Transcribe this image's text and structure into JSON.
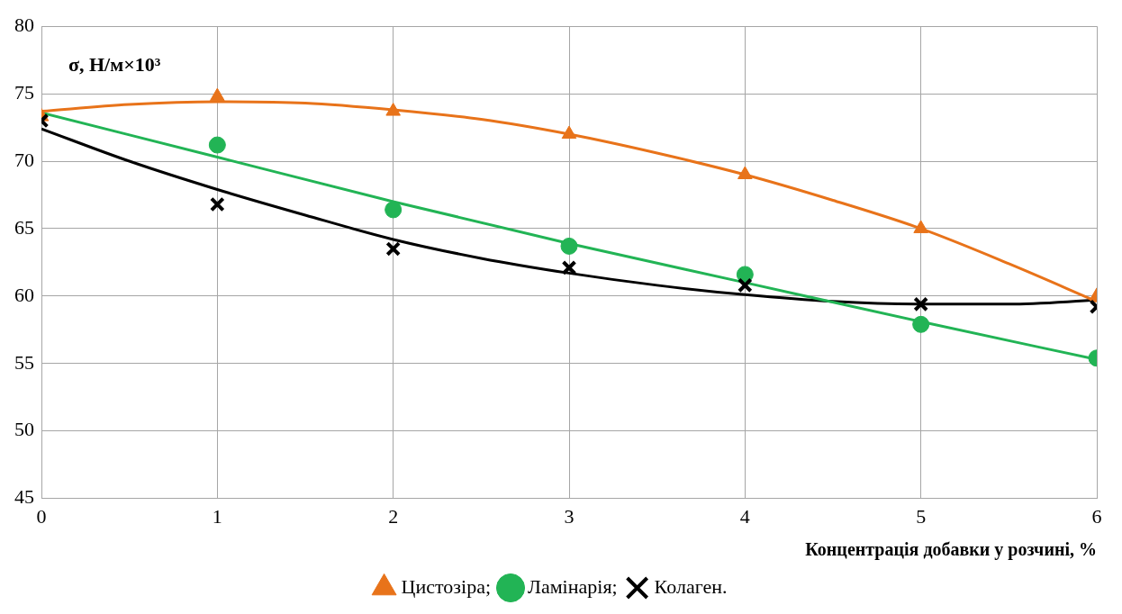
{
  "chart_data": {
    "type": "scatter",
    "xlabel": "Концентрація добавки у розчині, %",
    "ylabel": "σ, Н/м×10³",
    "x": [
      0,
      1,
      2,
      3,
      4,
      5,
      6
    ],
    "xlim": [
      0,
      6
    ],
    "xticks": [
      0,
      1,
      2,
      3,
      4,
      5,
      6
    ],
    "ylim": [
      45,
      80
    ],
    "yticks": [
      45,
      50,
      55,
      60,
      65,
      70,
      75,
      80
    ],
    "grid": true,
    "legend": "bottom",
    "series": [
      {
        "name": "Цистозіра;",
        "color": "#e8731a",
        "marker": "triangle",
        "values": [
          73.3,
          74.8,
          73.7,
          72.0,
          69.0,
          65.0,
          60.0
        ]
      },
      {
        "name": "Ламінарія;",
        "color": "#22b455",
        "marker": "circle",
        "values": [
          null,
          71.2,
          66.4,
          63.7,
          61.6,
          57.9,
          55.4
        ]
      },
      {
        "name": "Колаген.",
        "color": "#000000",
        "marker": "cross",
        "values": [
          73.0,
          66.8,
          63.5,
          62.1,
          60.8,
          59.4,
          59.2
        ]
      },
      {
        "type": "line",
        "color": "#e8731a",
        "marker": "none",
        "x": [
          0,
          0.5,
          1,
          1.5,
          2,
          2.5,
          3,
          3.5,
          4,
          4.5,
          5,
          5.5,
          6
        ],
        "values": [
          73.7,
          74.2,
          74.4,
          74.3,
          73.8,
          73.1,
          72.0,
          70.6,
          69.0,
          67.1,
          65.0,
          62.4,
          59.6
        ]
      },
      {
        "type": "line",
        "color": "#22b455",
        "marker": "none",
        "x": [
          0,
          1,
          2,
          3,
          4,
          5,
          6
        ],
        "values": [
          73.6,
          70.3,
          67.0,
          63.9,
          61.0,
          58.1,
          55.3
        ]
      },
      {
        "type": "line",
        "color": "#000000",
        "marker": "none",
        "x": [
          0,
          0.5,
          1,
          1.5,
          2,
          2.5,
          3,
          3.5,
          4,
          4.5,
          5,
          5.5,
          6
        ],
        "values": [
          72.4,
          70.0,
          67.9,
          66.0,
          64.2,
          62.8,
          61.7,
          60.8,
          60.1,
          59.6,
          59.4,
          59.4,
          59.7
        ]
      }
    ]
  }
}
